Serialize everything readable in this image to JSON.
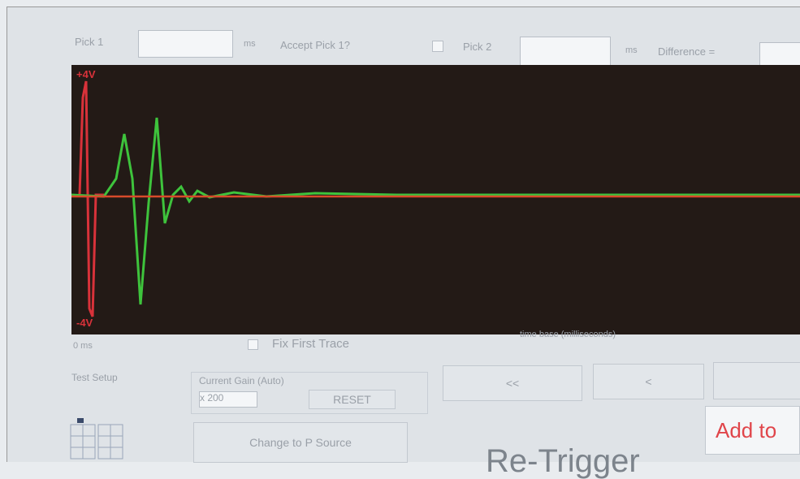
{
  "toolbar": {
    "pick1_label": "Pick 1",
    "pick1_unit": "ms",
    "accept_label": "Accept Pick 1?",
    "pick2_label": "Pick 2",
    "pick2_unit": "ms",
    "difference_label": "Difference ="
  },
  "scope": {
    "top_label": "+4V",
    "bottom_label": "-4V",
    "origin_label": "0 ms",
    "fix_trace_label": "Fix First Trace",
    "time_axis_label": "time base (milliseconds)"
  },
  "controls": {
    "test_setup": "Test Setup",
    "gain_label": "Current Gain (Auto)",
    "gain_value": "x 200",
    "reset": "RESET",
    "back_fast": "<<",
    "back": "<",
    "change_source": "Change to P Source",
    "add_to": "Add to",
    "retrigger": "Re-Trigger"
  }
}
